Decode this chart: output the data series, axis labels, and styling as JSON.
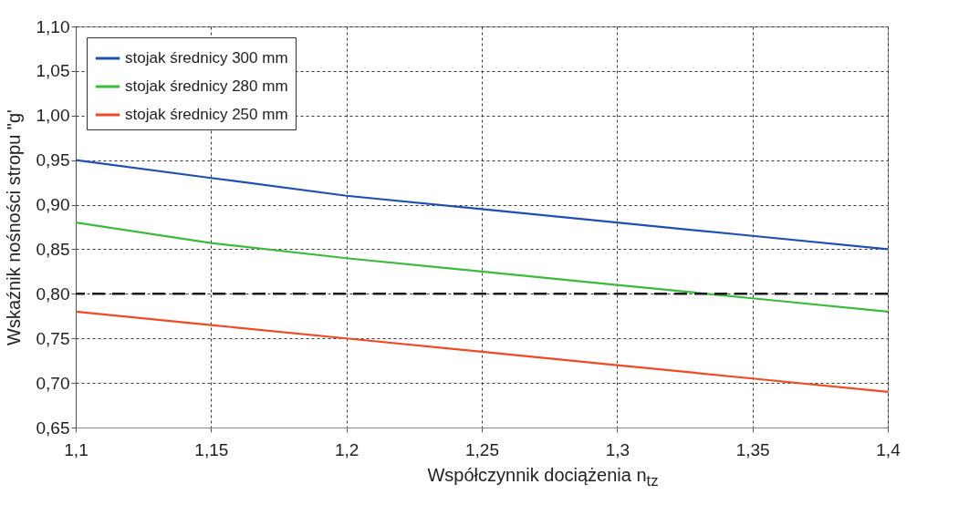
{
  "chart_data": {
    "type": "line",
    "xlabel": "Współczynnik dociążenia n$_{tz}$",
    "ylabel": "Wskaźnik nośności stropu \"g'",
    "x": [
      1.1,
      1.15,
      1.2,
      1.25,
      1.3,
      1.35,
      1.4
    ],
    "series": [
      {
        "name": "stojak średnicy 300 mm",
        "color": "#1f4fb0",
        "values": [
          0.95,
          0.93,
          0.91,
          0.895,
          0.88,
          0.865,
          0.85
        ]
      },
      {
        "name": "stojak średnicy 280 mm",
        "color": "#3cba3c",
        "values": [
          0.88,
          0.857,
          0.84,
          0.825,
          0.81,
          0.795,
          0.78
        ]
      },
      {
        "name": "stojak średnicy 250 mm",
        "color": "#f04a24",
        "values": [
          0.78,
          0.765,
          0.75,
          0.735,
          0.72,
          0.705,
          0.69
        ]
      }
    ],
    "xlim": [
      1.1,
      1.4
    ],
    "xticks": [
      {
        "value": 1.1,
        "label": "1,1"
      },
      {
        "value": 1.15,
        "label": "1,15"
      },
      {
        "value": 1.2,
        "label": "1,2"
      },
      {
        "value": 1.25,
        "label": "1,25"
      },
      {
        "value": 1.3,
        "label": "1,3"
      },
      {
        "value": 1.35,
        "label": "1,35"
      },
      {
        "value": 1.4,
        "label": "1,4"
      }
    ],
    "ylim": [
      0.65,
      1.1
    ],
    "yticks": [
      {
        "value": 0.65,
        "label": "0,65"
      },
      {
        "value": 0.7,
        "label": "0,70"
      },
      {
        "value": 0.75,
        "label": "0,75"
      },
      {
        "value": 0.8,
        "label": "0,80"
      },
      {
        "value": 0.85,
        "label": "0,85"
      },
      {
        "value": 0.9,
        "label": "0,90"
      },
      {
        "value": 0.95,
        "label": "0,95"
      },
      {
        "value": 1.0,
        "label": "1,00"
      },
      {
        "value": 1.05,
        "label": "1,05"
      },
      {
        "value": 1.1,
        "label": "1,10"
      }
    ],
    "ref_lines": [
      {
        "axis": "y",
        "value": 0.8,
        "color": "#1a1a1a",
        "line_style": "dashed"
      }
    ],
    "grid": true,
    "legend": "top left",
    "line_style": "solid",
    "marker": "none"
  }
}
